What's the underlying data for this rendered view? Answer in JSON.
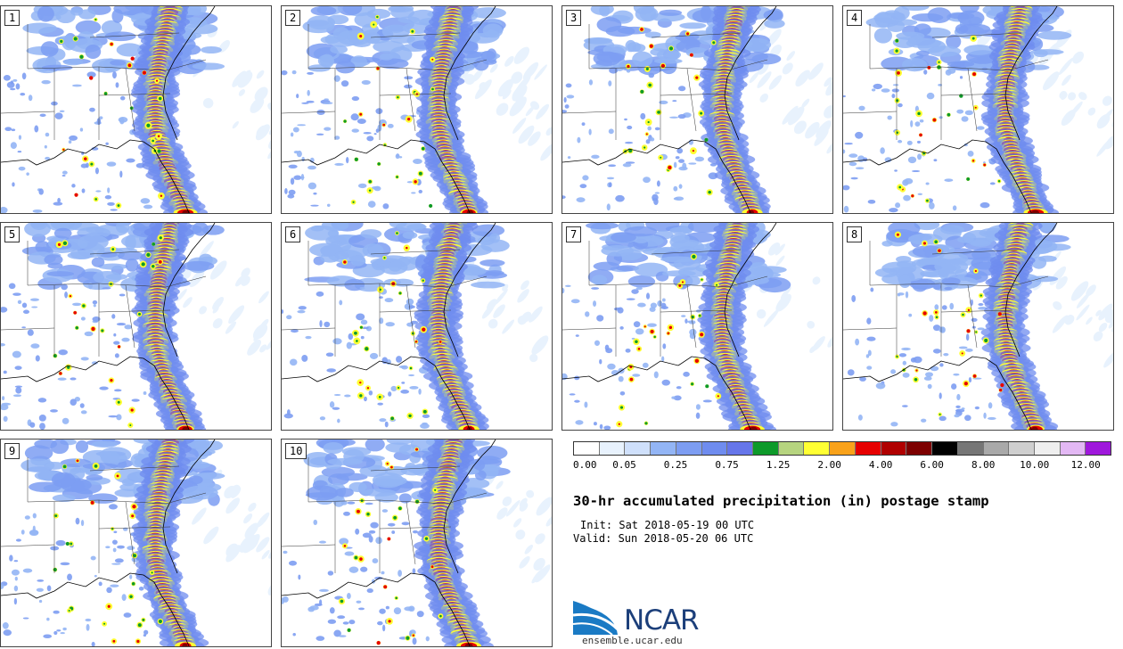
{
  "panels": [
    {
      "label": "1"
    },
    {
      "label": "2"
    },
    {
      "label": "3"
    },
    {
      "label": "4"
    },
    {
      "label": "5"
    },
    {
      "label": "6"
    },
    {
      "label": "7"
    },
    {
      "label": "8"
    },
    {
      "label": "9"
    },
    {
      "label": "10"
    }
  ],
  "colorbar": {
    "colors": [
      "#ffffff",
      "#e8f2fd",
      "#cfe0fb",
      "#93b5f5",
      "#7d9df2",
      "#6f8cef",
      "#6676ea",
      "#0d9a2a",
      "#b6d47f",
      "#ffff33",
      "#f9a21a",
      "#e60000",
      "#b00000",
      "#7d0000",
      "#000000",
      "#767676",
      "#a9a9a9",
      "#cfcfcf",
      "#efefef",
      "#e3b8f4",
      "#9f18dc"
    ],
    "tick_labels": [
      "0.00",
      "0.05",
      "0.25",
      "0.75",
      "1.25",
      "2.00",
      "4.00",
      "6.00",
      "8.00",
      "10.00",
      "12.00"
    ]
  },
  "title": "30-hr accumulated precipitation (in) postage stamp",
  "init": "Init: Sat 2018-05-19 00 UTC",
  "valid": "Valid: Sun 2018-05-20 06 UTC",
  "logo": {
    "text": "NCAR",
    "url": "ensemble.ucar.edu"
  }
}
